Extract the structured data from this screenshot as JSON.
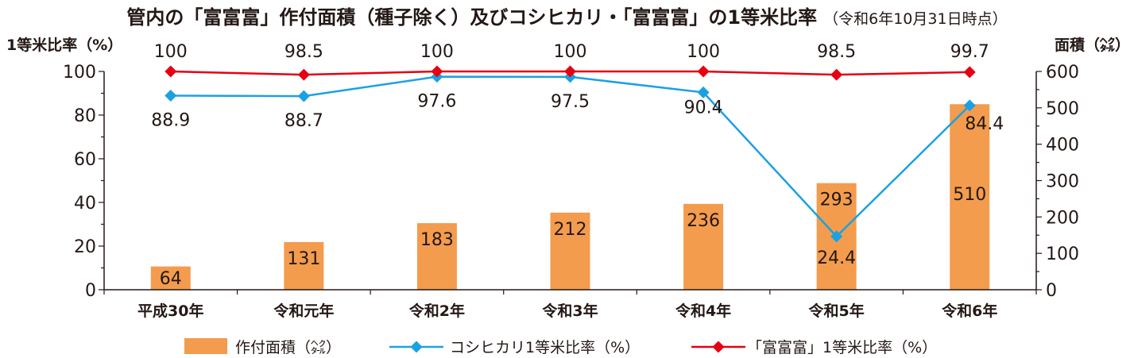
{
  "chart_data": {
    "type": "bar",
    "title": "管内の「富富富」作付面積（種子除く）及びコシヒカリ・「富富富」の1等米比率",
    "subtitle": "（令和6年10月31日時点）",
    "categories": [
      "平成30年",
      "令和元年",
      "令和2年",
      "令和3年",
      "令和4年",
      "令和5年",
      "令和6年"
    ],
    "ylabel_left": "1等米比率（%）",
    "ylabel_right": "面積（㌶）",
    "ylim_left": [
      0,
      100
    ],
    "ylim_right": [
      0,
      600
    ],
    "yticks_left": [
      "0",
      "20",
      "40",
      "60",
      "80",
      "100"
    ],
    "yticks_right": [
      "0",
      "100",
      "200",
      "300",
      "400",
      "500",
      "600"
    ],
    "series": [
      {
        "name": "作付面積（㌶）",
        "type": "bar",
        "axis": "right",
        "color": "#f39c4e",
        "values": [
          64,
          131,
          183,
          212,
          236,
          293,
          510
        ],
        "labels": [
          "64",
          "131",
          "183",
          "212",
          "236",
          "293",
          "510"
        ]
      },
      {
        "name": "コシヒカリ1等米比率（%）",
        "type": "line",
        "axis": "left",
        "color": "#1ba1e2",
        "marker": "diamond",
        "values": [
          88.9,
          88.7,
          97.6,
          97.5,
          90.4,
          24.4,
          84.4
        ],
        "labels": [
          "88.9",
          "88.7",
          "97.6",
          "97.5",
          "90.4",
          "24.4",
          "84.4"
        ]
      },
      {
        "name": "「富富富」1等米比率（%）",
        "type": "line",
        "axis": "left",
        "color": "#e60012",
        "marker": "diamond",
        "values": [
          100,
          98.5,
          100,
          100,
          100,
          98.5,
          99.7
        ],
        "labels": [
          "100",
          "98.5",
          "100",
          "100",
          "100",
          "98.5",
          "99.7"
        ]
      }
    ],
    "legend": "bottom",
    "grid": false
  }
}
